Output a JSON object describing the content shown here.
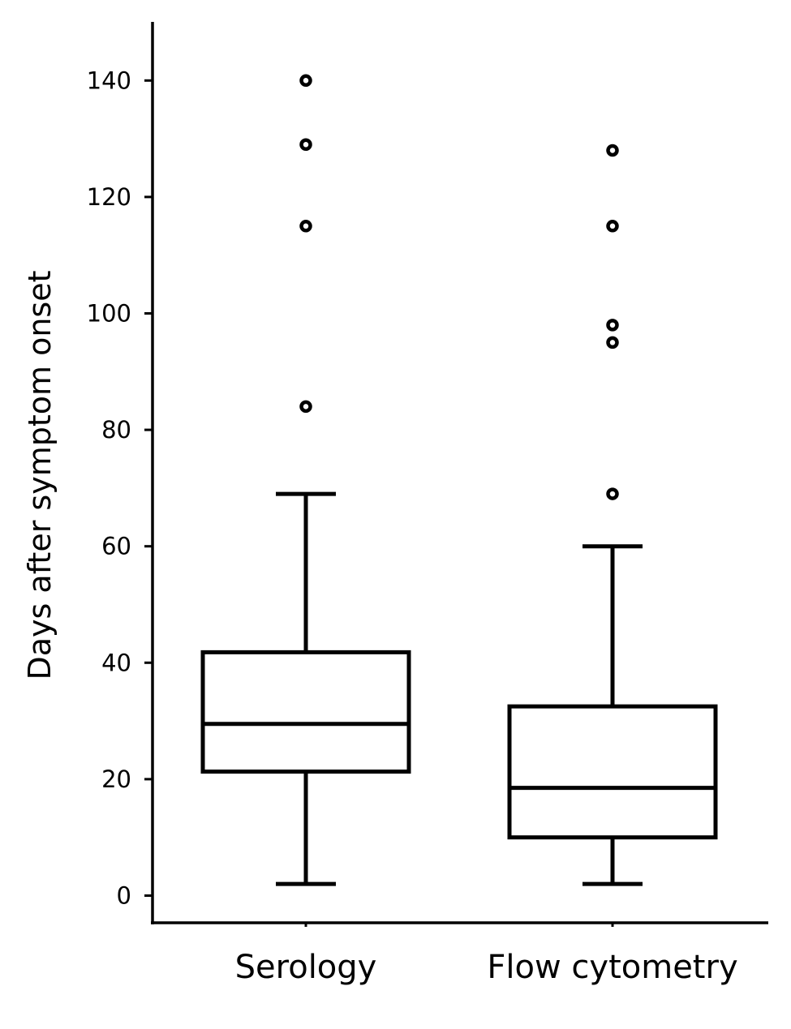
{
  "chart_data": {
    "type": "boxplot",
    "title": "",
    "xlabel": "",
    "ylabel": "Days after symptom onset",
    "ylim": [
      -4.5,
      150
    ],
    "yticks": [
      0,
      20,
      40,
      60,
      80,
      100,
      120,
      140
    ],
    "ytick_labels": [
      "0",
      "20",
      "40",
      "60",
      "80",
      "100",
      "120",
      "140"
    ],
    "grid": false,
    "categories": [
      "Serology",
      "Flow cytometry"
    ],
    "series": [
      {
        "category": "Serology",
        "whisker_low": 2,
        "q1": 21.3,
        "median": 29.5,
        "q3": 41.8,
        "whisker_high": 69,
        "outliers": [
          84,
          115,
          129,
          140
        ]
      },
      {
        "category": "Flow cytometry",
        "whisker_low": 2,
        "q1": 10,
        "median": 18.5,
        "q3": 32.5,
        "whisker_high": 60,
        "outliers": [
          69,
          95,
          98,
          115,
          128
        ]
      }
    ]
  }
}
